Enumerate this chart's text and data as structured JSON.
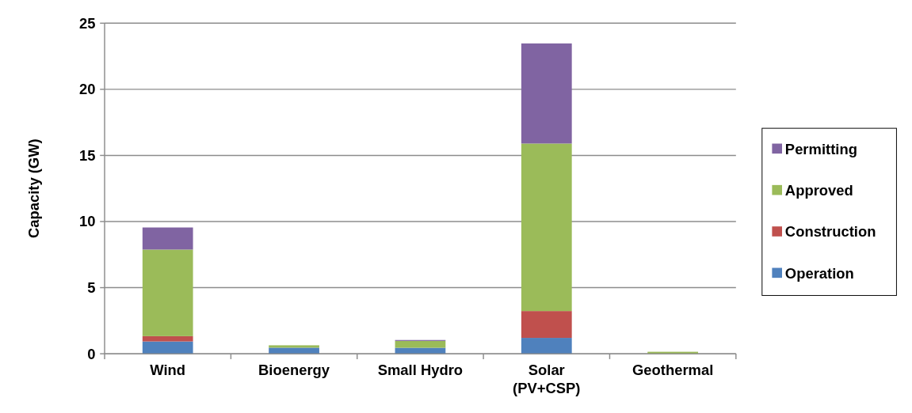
{
  "chart_data": {
    "type": "bar",
    "stacked": true,
    "ylabel": "Capacity (GW)",
    "categories": [
      "Wind",
      "Bioenergy",
      "Small Hydro",
      "Solar\n(PV+CSP)",
      "Geothermal"
    ],
    "series": [
      {
        "name": "Operation",
        "color": "#4f81bd",
        "values": [
          0.93,
          0.46,
          0.45,
          1.2,
          0
        ]
      },
      {
        "name": "Construction",
        "color": "#c0504d",
        "values": [
          0.4,
          0,
          null,
          2.03,
          0
        ]
      },
      {
        "name": "Approved",
        "color": "#9bbb59",
        "values": [
          6.55,
          0.18,
          0.52,
          12.67,
          0.15
        ]
      },
      {
        "name": "Permitting",
        "color": "#8064a2",
        "values": [
          1.67,
          null,
          0.07,
          7.57,
          0
        ]
      }
    ],
    "ylim": [
      0,
      25
    ],
    "yticks": [
      0,
      5,
      10,
      15,
      20,
      25
    ],
    "grid": "y",
    "legend": "right"
  }
}
